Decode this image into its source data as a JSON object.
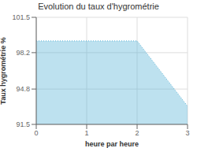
{
  "chart_data": {
    "type": "area",
    "title": "Evolution du taux d'hygrométrie",
    "xlabel": "heure par heure",
    "ylabel": "Taux hygrométrie %",
    "x": [
      0,
      2,
      3
    ],
    "values": [
      99.3,
      99.3,
      93.2
    ],
    "color": "#5ab4d6",
    "line_style": "dotted",
    "xlim": [
      0,
      3
    ],
    "ylim": [
      91.5,
      101.5
    ],
    "xticks": [
      0,
      1,
      2,
      3
    ],
    "yticks": [
      91.5,
      94.8,
      98.2,
      101.5
    ],
    "grid": true
  }
}
